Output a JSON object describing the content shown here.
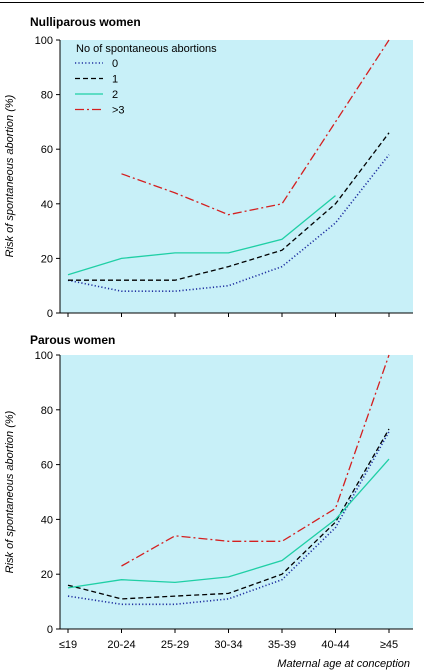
{
  "chart_data": [
    {
      "type": "line",
      "title": "Nulliparous women",
      "ylabel": "Risk of spontaneous abortion (%)",
      "xlabel": "",
      "ylim": [
        0,
        100
      ],
      "yticks": [
        0,
        20,
        40,
        60,
        80,
        100
      ],
      "grid": false,
      "legend": {
        "title": "No of spontaneous abortions",
        "placement": "top-left"
      },
      "series": [
        {
          "name": "0",
          "color": "#1f2fa0",
          "dash": "dotted",
          "values": [
            12,
            8,
            8,
            10,
            17,
            33,
            58
          ]
        },
        {
          "name": "1",
          "color": "#000000",
          "dash": "dashed",
          "values": [
            12,
            12,
            12,
            17,
            23,
            40,
            66
          ]
        },
        {
          "name": "2",
          "color": "#1fcfa5",
          "dash": "solid",
          "values": [
            14,
            20,
            22,
            22,
            27,
            43,
            null
          ]
        },
        {
          "name": ">3",
          "color": "#d42020",
          "dash": "dashdot",
          "values": [
            null,
            51,
            44,
            36,
            40,
            70,
            100
          ]
        }
      ]
    },
    {
      "type": "line",
      "title": "Parous women",
      "ylabel": "Risk of spontaneous abortion (%)",
      "xlabel": "Maternal age at conception",
      "categories": [
        "≤19",
        "20-24",
        "25-29",
        "30-34",
        "35-39",
        "40-44",
        "≥45"
      ],
      "ylim": [
        0,
        100
      ],
      "yticks": [
        0,
        20,
        40,
        60,
        80,
        100
      ],
      "grid": false,
      "series": [
        {
          "name": "0",
          "color": "#1f2fa0",
          "dash": "dotted",
          "values": [
            12,
            9,
            9,
            11,
            18,
            37,
            72
          ]
        },
        {
          "name": "1",
          "color": "#000000",
          "dash": "dashed",
          "values": [
            16,
            11,
            12,
            13,
            20,
            39,
            73
          ]
        },
        {
          "name": "2",
          "color": "#1fcfa5",
          "dash": "solid",
          "values": [
            15,
            18,
            17,
            19,
            25,
            40,
            62
          ]
        },
        {
          "name": ">3",
          "color": "#d42020",
          "dash": "dashdot",
          "values": [
            null,
            23,
            34,
            32,
            32,
            44,
            100
          ]
        }
      ]
    }
  ],
  "background_color": "#c8f0f8"
}
